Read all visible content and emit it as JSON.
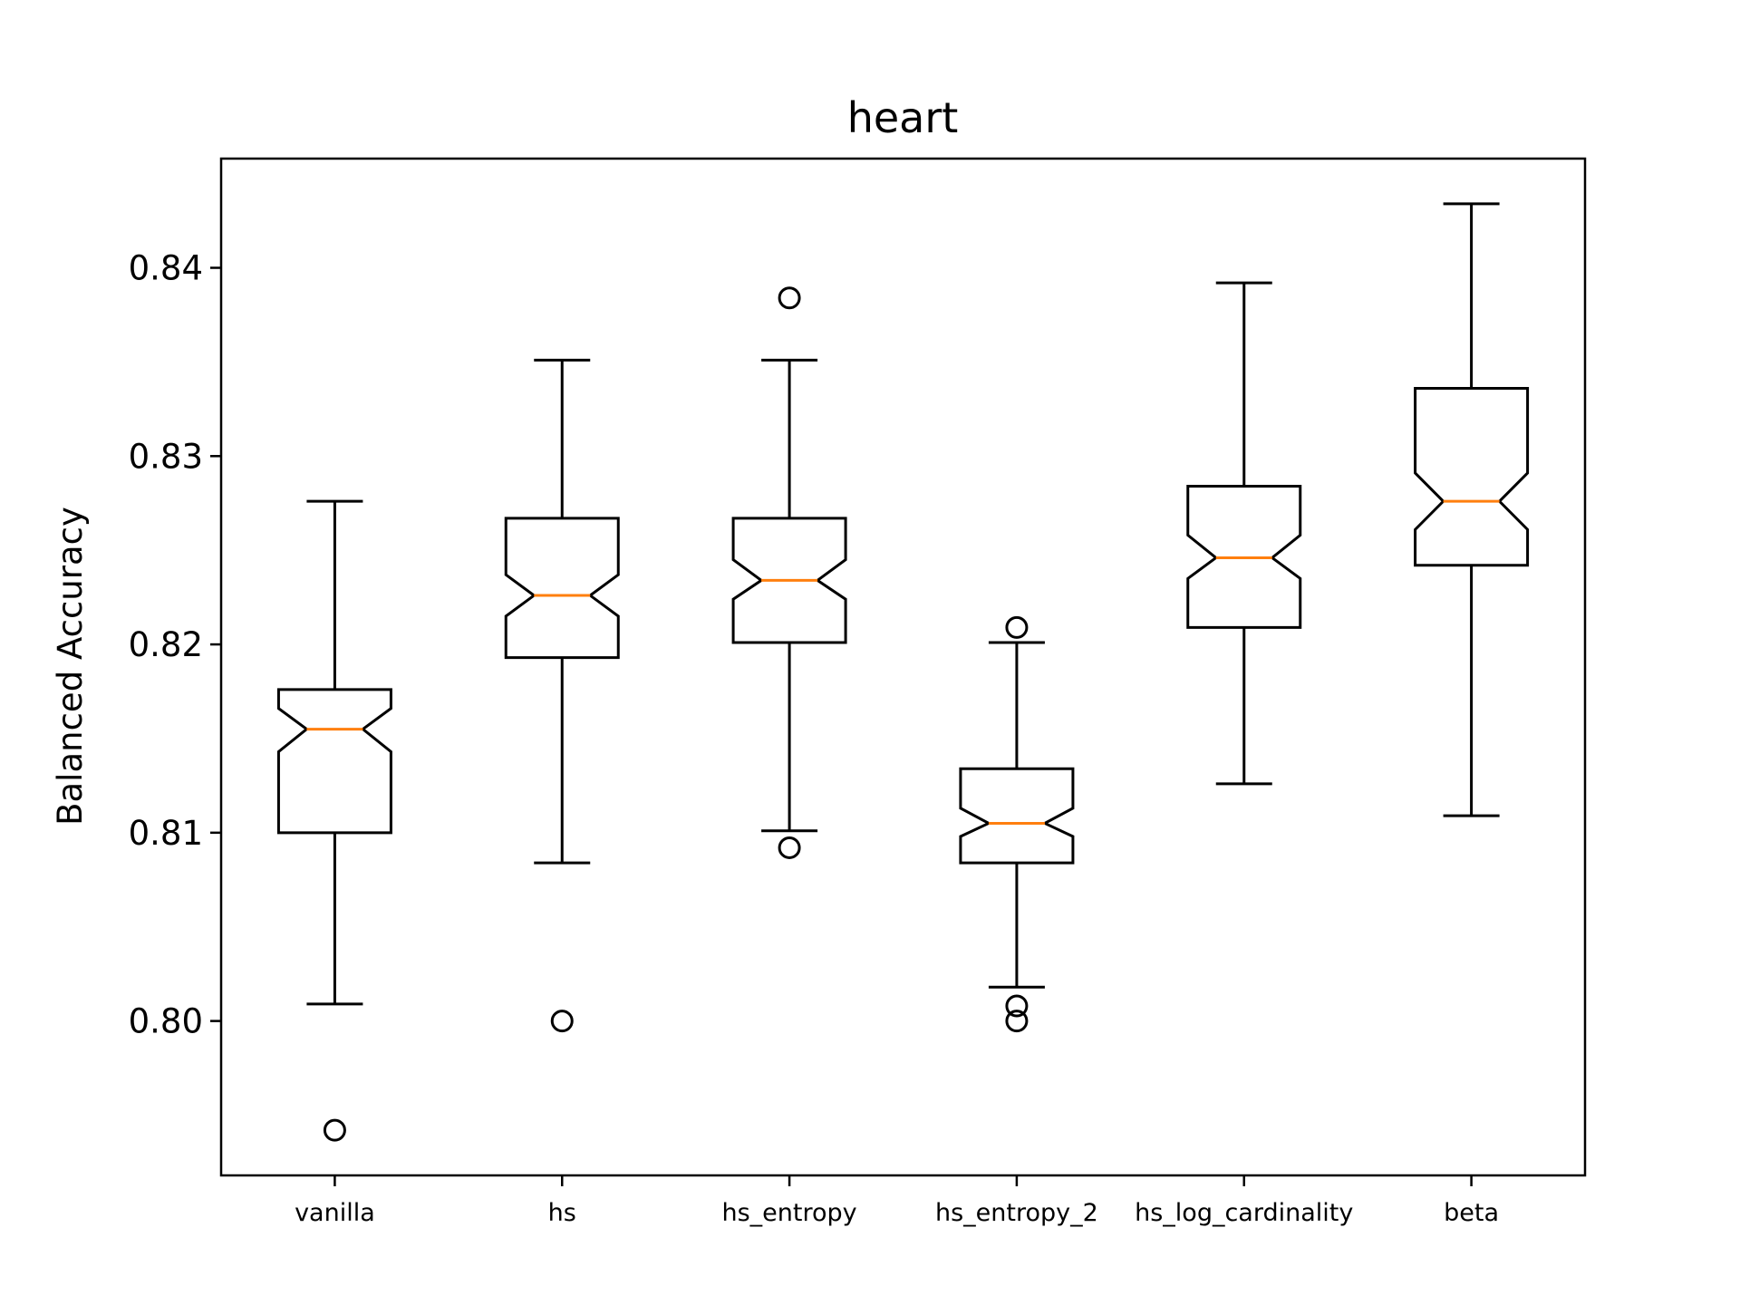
{
  "chart_data": {
    "type": "boxplot",
    "title": "heart",
    "xlabel": "",
    "ylabel": "Balanced Accuracy",
    "ylim": [
      0.7918,
      0.8458
    ],
    "yticks": [
      0.8,
      0.81,
      0.82,
      0.83,
      0.84
    ],
    "ytick_labels": [
      "0.80",
      "0.81",
      "0.82",
      "0.83",
      "0.84"
    ],
    "notched": true,
    "grid": false,
    "categories": [
      "vanilla",
      "hs",
      "hs_entropy",
      "hs_entropy_2",
      "hs_log_cardinality",
      "beta"
    ],
    "boxes": [
      {
        "name": "vanilla",
        "whisker_low": 0.8009,
        "q1": 0.81,
        "notch_low": 0.8143,
        "median": 0.8155,
        "notch_high": 0.8166,
        "q3": 0.8176,
        "whisker_high": 0.8276,
        "outliers": [
          0.7942
        ]
      },
      {
        "name": "hs",
        "whisker_low": 0.8084,
        "q1": 0.8193,
        "notch_low": 0.8215,
        "median": 0.8226,
        "notch_high": 0.8237,
        "q3": 0.8267,
        "whisker_high": 0.8351,
        "outliers": [
          0.8
        ]
      },
      {
        "name": "hs_entropy",
        "whisker_low": 0.8101,
        "q1": 0.8201,
        "notch_low": 0.8224,
        "median": 0.8234,
        "notch_high": 0.8245,
        "q3": 0.8267,
        "whisker_high": 0.8351,
        "outliers": [
          0.8384,
          0.8092
        ]
      },
      {
        "name": "hs_entropy_2",
        "whisker_low": 0.8018,
        "q1": 0.8084,
        "notch_low": 0.8098,
        "median": 0.8105,
        "notch_high": 0.8113,
        "q3": 0.8134,
        "whisker_high": 0.8201,
        "outliers": [
          0.8209,
          0.8008,
          0.8
        ]
      },
      {
        "name": "hs_log_cardinality",
        "whisker_low": 0.8126,
        "q1": 0.8209,
        "notch_low": 0.8235,
        "median": 0.8246,
        "notch_high": 0.8258,
        "q3": 0.8284,
        "whisker_high": 0.8392,
        "outliers": []
      },
      {
        "name": "beta",
        "whisker_low": 0.8109,
        "q1": 0.8242,
        "notch_low": 0.8261,
        "median": 0.8276,
        "notch_high": 0.8291,
        "q3": 0.8336,
        "whisker_high": 0.8434,
        "outliers": []
      }
    ],
    "colors": {
      "box": "#000000",
      "median": "#ff7f0e",
      "outlier": "#000000",
      "background": "#ffffff"
    }
  }
}
